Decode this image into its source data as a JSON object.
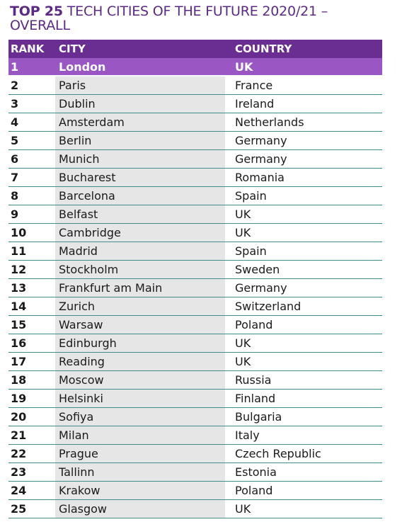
{
  "title": {
    "bold_part": "TOP 25",
    "rest_line1": " TECH CITIES OF THE FUTURE 2020/21 –",
    "line2": "OVERALL"
  },
  "table": {
    "headers": {
      "rank": "RANK",
      "city": "CITY",
      "country": "COUNTRY"
    },
    "rows": [
      {
        "rank": "1",
        "city": "London",
        "country": "UK"
      },
      {
        "rank": "2",
        "city": "Paris",
        "country": "France"
      },
      {
        "rank": "3",
        "city": "Dublin",
        "country": "Ireland"
      },
      {
        "rank": "4",
        "city": "Amsterdam",
        "country": "Netherlands"
      },
      {
        "rank": "5",
        "city": "Berlin",
        "country": "Germany"
      },
      {
        "rank": "6",
        "city": "Munich",
        "country": "Germany"
      },
      {
        "rank": "7",
        "city": "Bucharest",
        "country": "Romania"
      },
      {
        "rank": "8",
        "city": "Barcelona",
        "country": "Spain"
      },
      {
        "rank": "9",
        "city": "Belfast",
        "country": "UK"
      },
      {
        "rank": "10",
        "city": "Cambridge",
        "country": "UK"
      },
      {
        "rank": "11",
        "city": "Madrid",
        "country": "Spain"
      },
      {
        "rank": "12",
        "city": "Stockholm",
        "country": "Sweden"
      },
      {
        "rank": "13",
        "city": "Frankfurt am Main",
        "country": "Germany"
      },
      {
        "rank": "14",
        "city": "Zurich",
        "country": "Switzerland"
      },
      {
        "rank": "15",
        "city": "Warsaw",
        "country": "Poland"
      },
      {
        "rank": "16",
        "city": "Edinburgh",
        "country": "UK"
      },
      {
        "rank": "17",
        "city": "Reading",
        "country": "UK"
      },
      {
        "rank": "18",
        "city": "Moscow",
        "country": "Russia"
      },
      {
        "rank": "19",
        "city": "Helsinki",
        "country": "Finland"
      },
      {
        "rank": "20",
        "city": "Sofiya",
        "country": "Bulgaria"
      },
      {
        "rank": "21",
        "city": "Milan",
        "country": "Italy"
      },
      {
        "rank": "22",
        "city": "Prague",
        "country": "Czech Republic"
      },
      {
        "rank": "23",
        "city": "Tallinn",
        "country": "Estonia"
      },
      {
        "rank": "24",
        "city": "Krakow",
        "country": "Poland"
      },
      {
        "rank": "25",
        "city": "Glasgow",
        "country": "UK"
      }
    ]
  },
  "colors": {
    "title": "#5b2a86",
    "header_bg": "#6a2d91",
    "highlight_bg": "#9a57c4",
    "divider": "#3e8f8c",
    "city_column_bg": "#e6e6e6"
  }
}
